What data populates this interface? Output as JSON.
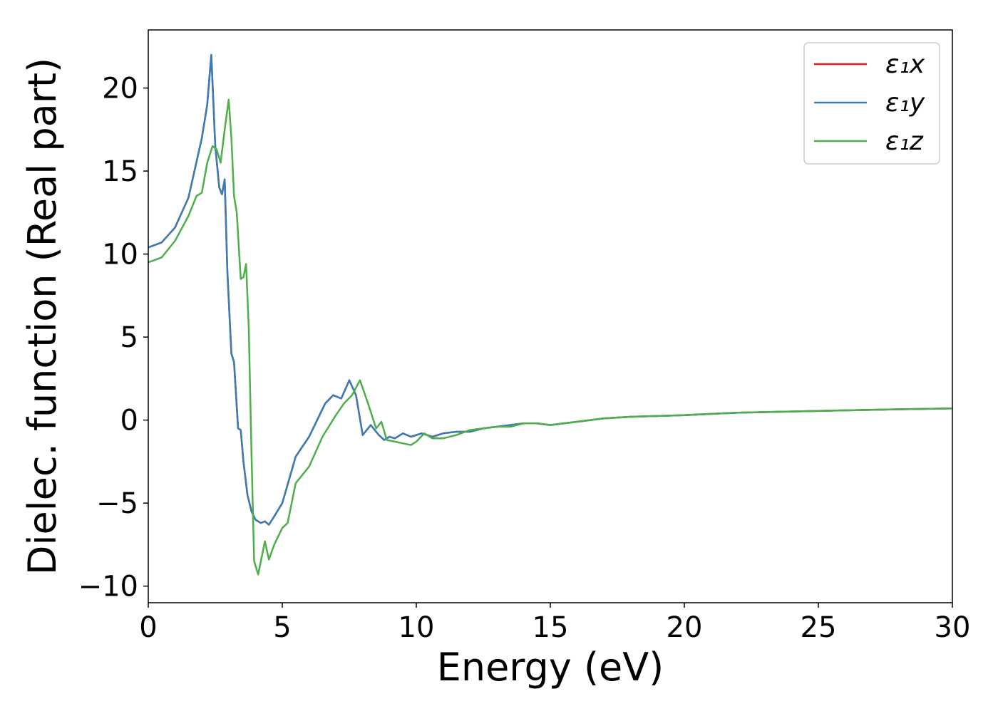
{
  "chart_data": {
    "type": "line",
    "title": "",
    "xlabel": "Energy (eV)",
    "ylabel": "Dielec. function (Real part)",
    "xlim": [
      0,
      30
    ],
    "ylim": [
      -11,
      23.5
    ],
    "xticks": [
      0,
      5,
      10,
      15,
      20,
      25,
      30
    ],
    "xtick_labels": [
      "0",
      "5",
      "10",
      "15",
      "20",
      "25",
      "30"
    ],
    "yticks": [
      -10,
      -5,
      0,
      5,
      10,
      15,
      20
    ],
    "ytick_labels": [
      "−10",
      "−5",
      "0",
      "5",
      "10",
      "15",
      "20"
    ],
    "grid": false,
    "legend_position": "top-right",
    "series": [
      {
        "name": "ε₁x",
        "color": "#e41a1c",
        "x": [
          0,
          0.5,
          1.0,
          1.5,
          2.0,
          2.2,
          2.35,
          2.5,
          2.65,
          2.75,
          2.85,
          2.95,
          3.1,
          3.2,
          3.35,
          3.45,
          3.55,
          3.7,
          3.85,
          4.0,
          4.2,
          4.35,
          4.5,
          4.7,
          5.0,
          5.5,
          6.0,
          6.3,
          6.6,
          6.9,
          7.2,
          7.5,
          7.75,
          8.0,
          8.3,
          8.6,
          8.8,
          9.0,
          9.2,
          9.5,
          9.8,
          10.2,
          10.6,
          11.0,
          11.5,
          12.0,
          12.5,
          13.0,
          13.5,
          14.0,
          14.5,
          15.0,
          15.5,
          16.0,
          17.0,
          18.0,
          20.0,
          22.0,
          25.0,
          28.0,
          30.0
        ],
        "y": [
          10.4,
          10.7,
          11.6,
          13.4,
          17.0,
          19.0,
          22.0,
          16.5,
          14.0,
          13.6,
          14.5,
          9.0,
          4.0,
          3.5,
          -0.5,
          -0.6,
          -2.5,
          -4.5,
          -5.5,
          -6.0,
          -6.2,
          -6.1,
          -6.3,
          -5.8,
          -5.0,
          -2.2,
          -1.0,
          0.0,
          1.0,
          1.5,
          1.3,
          2.4,
          1.5,
          -0.9,
          -0.3,
          -0.9,
          -1.2,
          -1.0,
          -1.1,
          -0.8,
          -1.0,
          -0.8,
          -1.0,
          -0.8,
          -0.7,
          -0.7,
          -0.5,
          -0.4,
          -0.3,
          -0.2,
          -0.2,
          -0.3,
          -0.2,
          -0.1,
          0.1,
          0.2,
          0.3,
          0.45,
          0.55,
          0.65,
          0.7
        ]
      },
      {
        "name": "ε₁y",
        "color": "#377eb8",
        "x": [
          0,
          0.5,
          1.0,
          1.5,
          2.0,
          2.2,
          2.35,
          2.5,
          2.65,
          2.75,
          2.85,
          2.95,
          3.1,
          3.2,
          3.35,
          3.45,
          3.55,
          3.7,
          3.85,
          4.0,
          4.2,
          4.35,
          4.5,
          4.7,
          5.0,
          5.5,
          6.0,
          6.3,
          6.6,
          6.9,
          7.2,
          7.5,
          7.75,
          8.0,
          8.3,
          8.6,
          8.8,
          9.0,
          9.2,
          9.5,
          9.8,
          10.2,
          10.6,
          11.0,
          11.5,
          12.0,
          12.5,
          13.0,
          13.5,
          14.0,
          14.5,
          15.0,
          15.5,
          16.0,
          17.0,
          18.0,
          20.0,
          22.0,
          25.0,
          28.0,
          30.0
        ],
        "y": [
          10.4,
          10.7,
          11.6,
          13.4,
          17.0,
          19.0,
          22.0,
          16.5,
          14.0,
          13.6,
          14.5,
          9.0,
          4.0,
          3.5,
          -0.5,
          -0.6,
          -2.5,
          -4.5,
          -5.5,
          -6.0,
          -6.2,
          -6.1,
          -6.3,
          -5.8,
          -5.0,
          -2.2,
          -1.0,
          0.0,
          1.0,
          1.5,
          1.3,
          2.4,
          1.5,
          -0.9,
          -0.3,
          -0.9,
          -1.2,
          -1.0,
          -1.1,
          -0.8,
          -1.0,
          -0.8,
          -1.0,
          -0.8,
          -0.7,
          -0.7,
          -0.5,
          -0.4,
          -0.3,
          -0.2,
          -0.2,
          -0.3,
          -0.2,
          -0.1,
          0.1,
          0.2,
          0.3,
          0.45,
          0.55,
          0.65,
          0.7
        ]
      },
      {
        "name": "ε₁z",
        "color": "#4daf4a",
        "x": [
          0,
          0.5,
          1.0,
          1.5,
          1.8,
          2.0,
          2.2,
          2.4,
          2.55,
          2.7,
          2.85,
          3.0,
          3.1,
          3.2,
          3.3,
          3.45,
          3.55,
          3.65,
          3.75,
          3.85,
          3.95,
          4.1,
          4.2,
          4.35,
          4.5,
          4.7,
          5.0,
          5.2,
          5.5,
          6.0,
          6.5,
          7.0,
          7.3,
          7.6,
          7.9,
          8.2,
          8.5,
          8.7,
          8.9,
          9.2,
          9.5,
          9.8,
          10.0,
          10.3,
          10.6,
          11.0,
          11.5,
          12.0,
          12.5,
          13.0,
          13.5,
          14.0,
          14.5,
          15.0,
          15.5,
          16.0,
          17.0,
          18.0,
          20.0,
          22.0,
          25.0,
          28.0,
          30.0
        ],
        "y": [
          9.5,
          9.8,
          10.8,
          12.3,
          13.5,
          13.7,
          15.5,
          16.5,
          16.3,
          15.5,
          17.5,
          19.3,
          17.0,
          13.5,
          12.5,
          8.5,
          8.6,
          9.4,
          5.5,
          -2.0,
          -8.5,
          -9.3,
          -8.5,
          -7.3,
          -8.4,
          -7.5,
          -6.5,
          -6.2,
          -3.8,
          -2.8,
          -1.0,
          0.3,
          1.0,
          1.5,
          2.4,
          1.0,
          -0.5,
          -0.1,
          -1.2,
          -1.3,
          -1.4,
          -1.5,
          -1.3,
          -0.8,
          -1.1,
          -1.1,
          -0.9,
          -0.6,
          -0.5,
          -0.4,
          -0.4,
          -0.2,
          -0.2,
          -0.3,
          -0.2,
          -0.1,
          0.1,
          0.2,
          0.3,
          0.45,
          0.55,
          0.65,
          0.7
        ]
      }
    ]
  }
}
